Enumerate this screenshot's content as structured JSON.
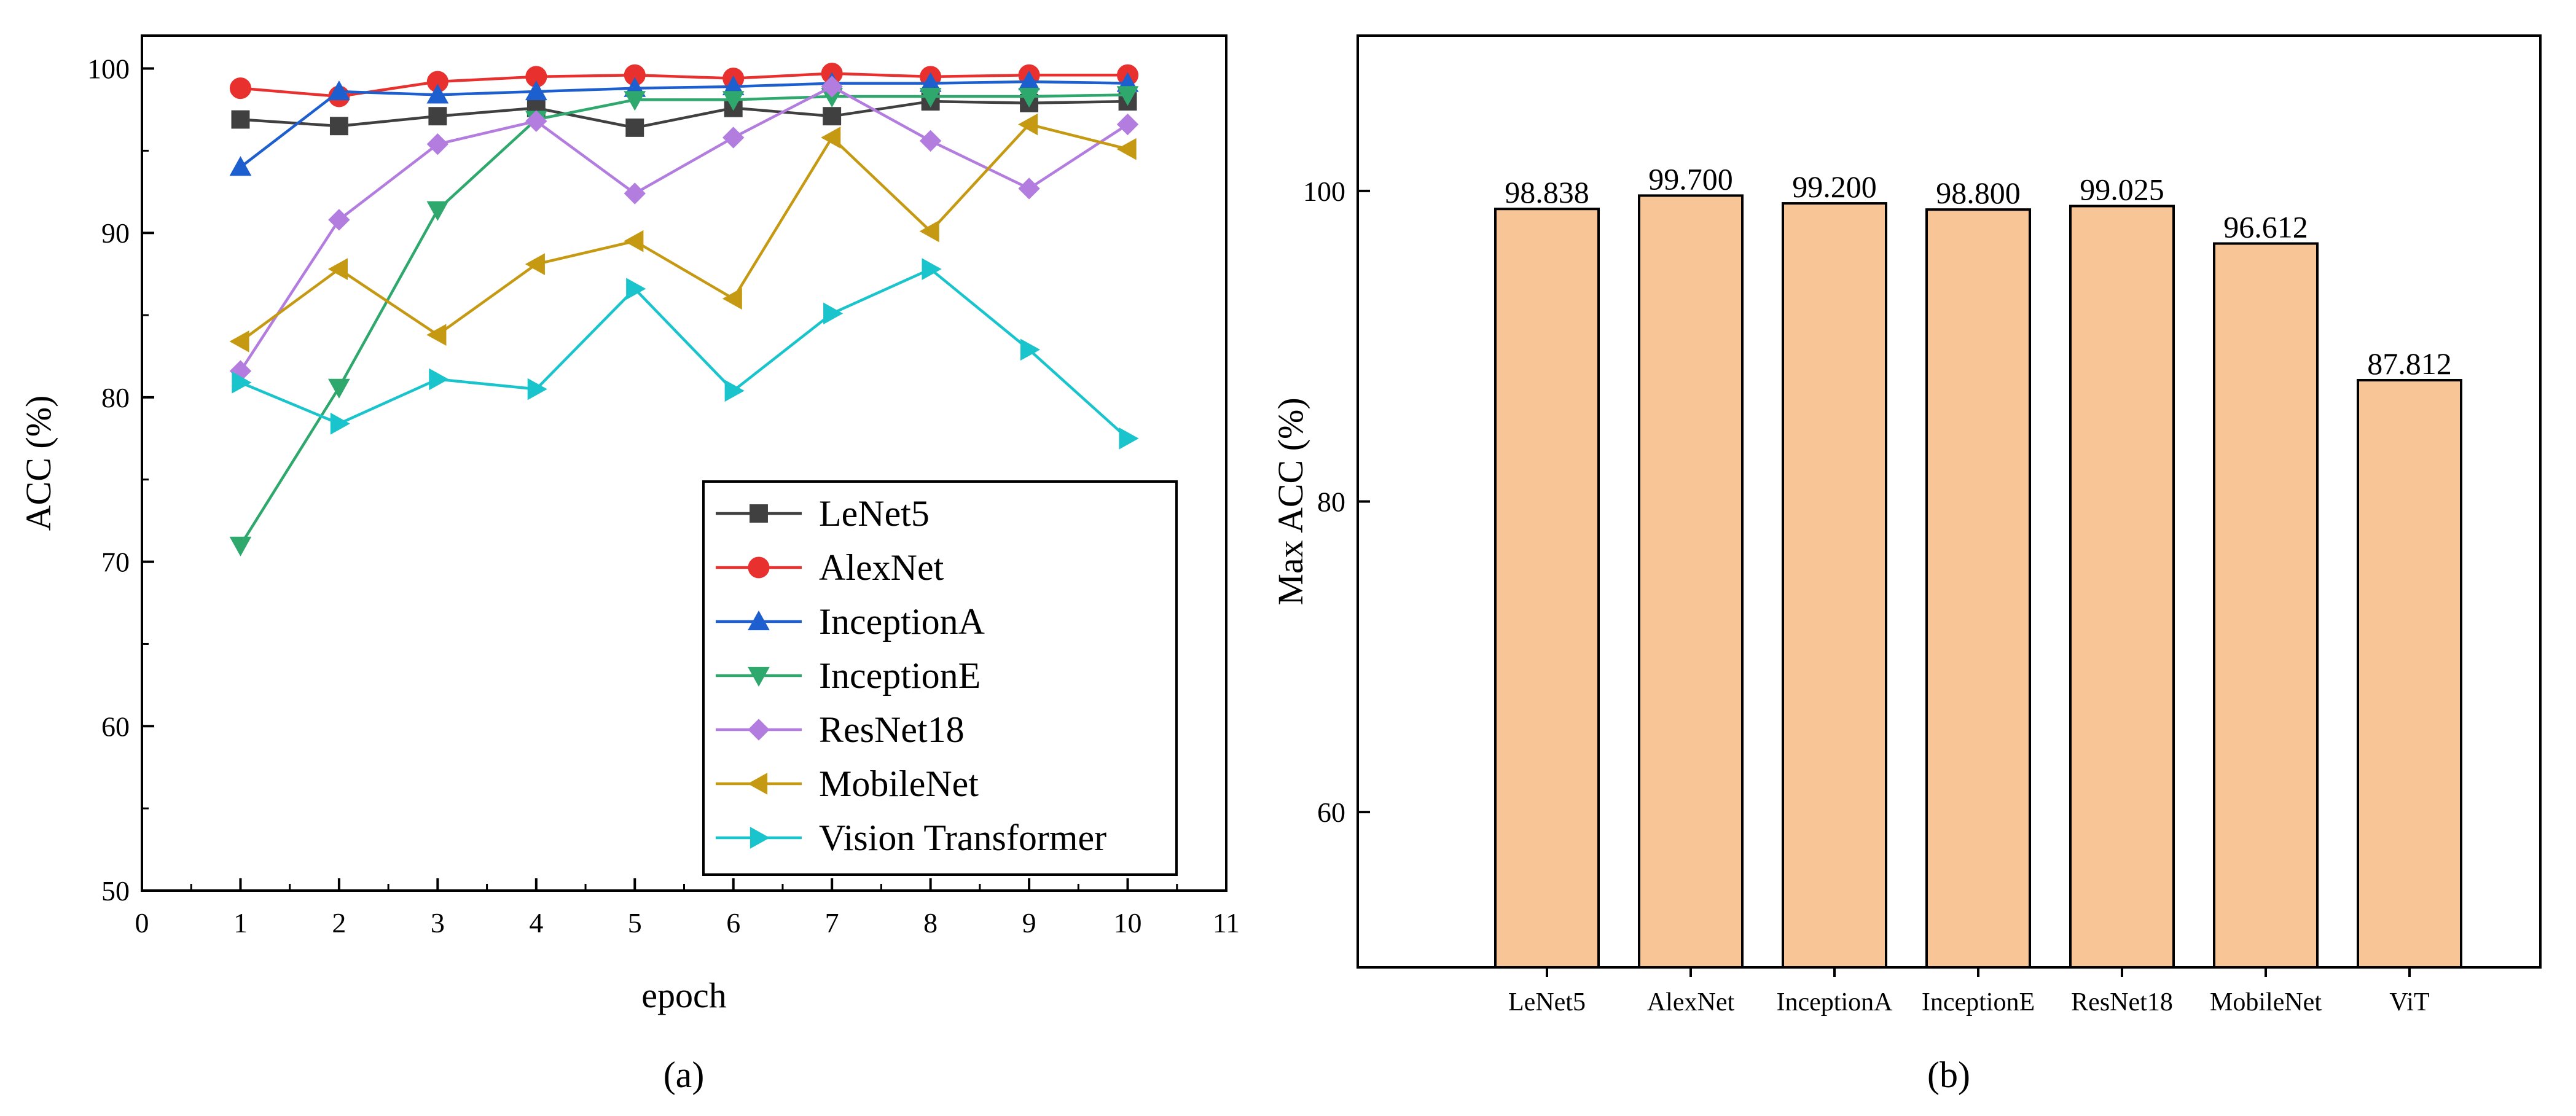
{
  "chart_data": [
    {
      "type": "line",
      "xlabel": "epoch",
      "ylabel": "ACC (%)",
      "xlim": [
        0,
        11
      ],
      "ylim": [
        50,
        102
      ],
      "xticks": [
        "0",
        "1",
        "2",
        "3",
        "4",
        "5",
        "6",
        "7",
        "8",
        "9",
        "10",
        "11"
      ],
      "yticks": [
        "50",
        "60",
        "70",
        "80",
        "90",
        "100"
      ],
      "x": [
        1,
        2,
        3,
        4,
        5,
        6,
        7,
        8,
        9,
        10
      ],
      "legend_position": "bottom-right",
      "series": [
        {
          "name": "LeNet5",
          "marker": "square",
          "color": "#404040",
          "values": [
            96.9,
            96.5,
            97.1,
            97.6,
            96.4,
            97.6,
            97.1,
            98.0,
            97.9,
            98.0
          ]
        },
        {
          "name": "AlexNet",
          "marker": "circle",
          "color": "#e8302e",
          "values": [
            98.8,
            98.3,
            99.2,
            99.5,
            99.6,
            99.4,
            99.7,
            99.5,
            99.6,
            99.6
          ]
        },
        {
          "name": "InceptionA",
          "marker": "triangle-up",
          "color": "#1e5fcf",
          "values": [
            94.0,
            98.6,
            98.4,
            98.6,
            98.8,
            98.9,
            99.1,
            99.1,
            99.2,
            99.1
          ]
        },
        {
          "name": "InceptionE",
          "marker": "triangle-down",
          "color": "#2ea86c",
          "values": [
            71.0,
            80.6,
            91.4,
            96.9,
            98.1,
            98.1,
            98.3,
            98.3,
            98.3,
            98.4
          ]
        },
        {
          "name": "ResNet18",
          "marker": "diamond",
          "color": "#b37de0",
          "values": [
            81.6,
            90.8,
            95.4,
            96.8,
            92.4,
            95.8,
            98.9,
            95.6,
            92.7,
            96.6
          ]
        },
        {
          "name": "MobileNet",
          "marker": "triangle-left",
          "color": "#c59a12",
          "values": [
            83.4,
            87.8,
            83.8,
            88.1,
            89.5,
            86.0,
            95.8,
            90.1,
            96.6,
            95.1
          ]
        },
        {
          "name": "Vision Transformer",
          "marker": "triangle-right",
          "color": "#19c4cc",
          "values": [
            80.9,
            78.4,
            81.1,
            80.5,
            86.6,
            80.4,
            85.1,
            87.8,
            82.9,
            77.5
          ]
        }
      ]
    },
    {
      "type": "bar",
      "ylabel": "Max ACC (%)",
      "ylim": [
        50,
        110
      ],
      "yticks": [
        "60",
        "80",
        "100"
      ],
      "categories": [
        "LeNet5",
        "AlexNet",
        "InceptionA",
        "InceptionE",
        "ResNet18",
        "MobileNet",
        "ViT"
      ],
      "values": [
        98.838,
        99.7,
        99.2,
        98.8,
        99.025,
        96.612,
        87.812
      ],
      "value_labels": [
        "98.838",
        "99.700",
        "99.200",
        "98.800",
        "99.025",
        "96.612",
        "87.812"
      ],
      "bar_color": "#f8c597"
    }
  ],
  "captions": {
    "a": "(a)",
    "b": "(b)"
  }
}
